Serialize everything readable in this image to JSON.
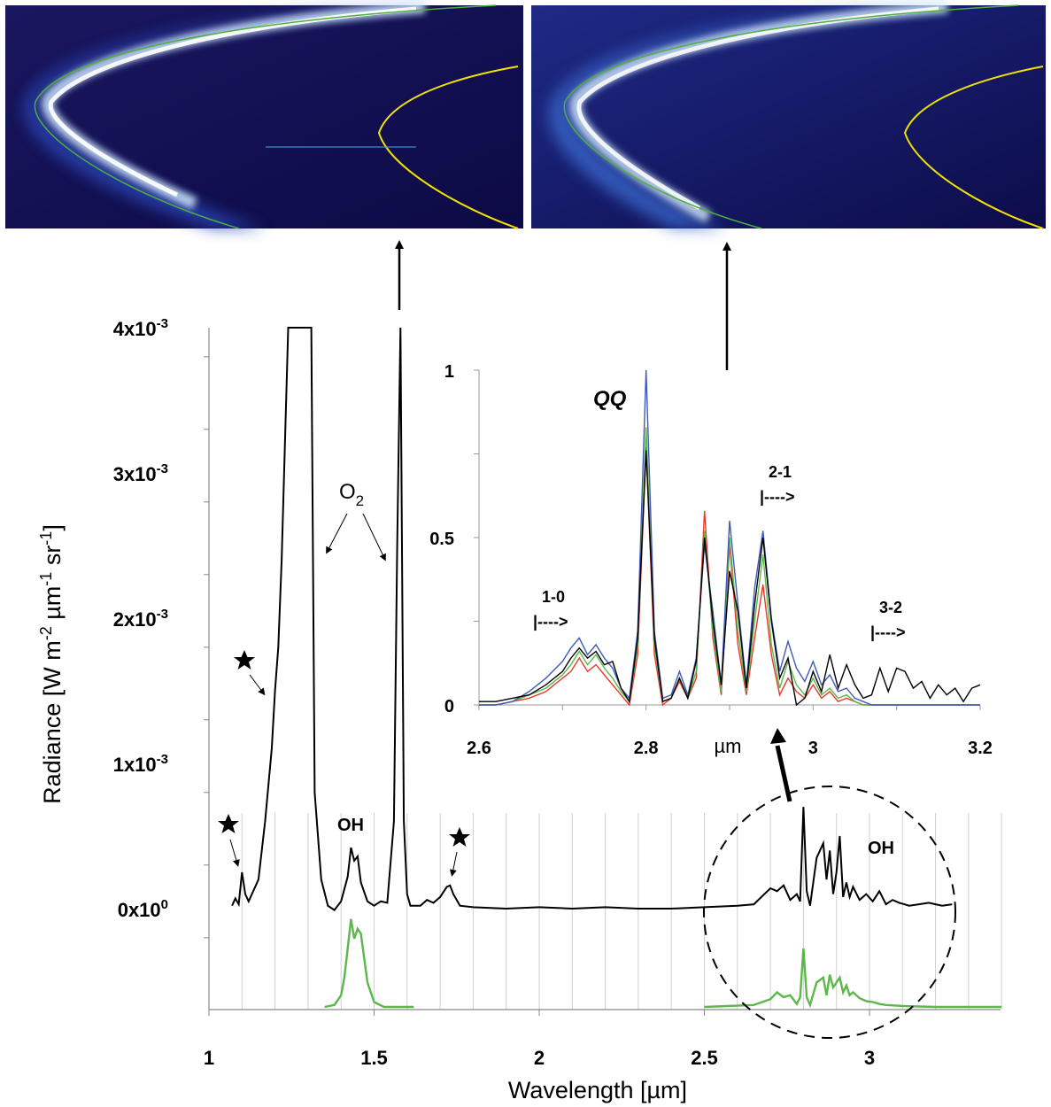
{
  "chart_data": [
    {
      "type": "line",
      "xlabel": "Wavelength [µm]",
      "ylabel_parts": [
        "Radiance [W m",
        "-2",
        " µm",
        "-1",
        " sr",
        "-1",
        "]"
      ],
      "xlim": [
        1.0,
        3.4
      ],
      "ylim": [
        0,
        0.004
      ],
      "x_ticks": [
        {
          "value": 1,
          "label": "1"
        },
        {
          "value": 1.5,
          "label": "1.5"
        },
        {
          "value": 2,
          "label": "2"
        },
        {
          "value": 2.5,
          "label": "2.5"
        },
        {
          "value": 3,
          "label": "3"
        }
      ],
      "y_ticks": [
        {
          "value": 0.004,
          "base": "4x10",
          "exp": "-3"
        },
        {
          "value": 0.003,
          "base": "3x10",
          "exp": "-3"
        },
        {
          "value": 0.002,
          "base": "2x10",
          "exp": "-3"
        },
        {
          "value": 0.001,
          "base": "1x10",
          "exp": "-3"
        },
        {
          "value": 0,
          "base": "0x10",
          "exp": "0"
        }
      ],
      "series": [
        {
          "color": "#000000",
          "x": [
            1.07,
            1.08,
            1.09,
            1.1,
            1.11,
            1.12,
            1.13,
            1.15,
            1.17,
            1.19,
            1.2,
            1.21,
            1.22,
            1.23,
            1.24,
            1.25,
            1.3,
            1.31,
            1.32,
            1.34,
            1.36,
            1.38,
            1.4,
            1.42,
            1.43,
            1.44,
            1.45,
            1.46,
            1.48,
            1.5,
            1.52,
            1.54,
            1.56,
            1.57,
            1.58,
            1.59,
            1.6,
            1.61,
            1.62,
            1.64,
            1.66,
            1.68,
            1.7,
            1.72,
            1.73,
            1.74,
            1.76,
            1.8,
            1.9,
            2.0,
            2.1,
            2.2,
            2.3,
            2.4,
            2.5,
            2.6,
            2.65,
            2.7,
            2.72,
            2.74,
            2.76,
            2.78,
            2.79,
            2.8,
            2.81,
            2.82,
            2.84,
            2.86,
            2.87,
            2.88,
            2.89,
            2.9,
            2.91,
            2.92,
            2.93,
            2.94,
            2.95,
            2.97,
            2.99,
            3.01,
            3.03,
            3.05,
            3.07,
            3.09,
            3.12,
            3.15,
            3.18,
            3.2,
            3.22,
            3.25
          ],
          "y": [
            2e-05,
            7e-05,
            3e-05,
            0.00025,
            0.0001,
            5e-05,
            0.0001,
            0.0002,
            0.0006,
            0.0011,
            0.0015,
            0.0018,
            0.0024,
            0.0032,
            0.004,
            0.004,
            0.004,
            0.004,
            0.0008,
            0.0002,
            2e-05,
            -1e-05,
            5e-05,
            0.00022,
            0.00042,
            0.00033,
            0.00036,
            0.00018,
            5e-05,
            2e-05,
            5e-05,
            4e-05,
            0.0006,
            0.0025,
            0.004,
            0.0006,
            0.0001,
            2e-05,
            2e-05,
            2e-05,
            6e-05,
            4e-05,
            8e-05,
            0.00015,
            0.00016,
            0.0001,
            2e-05,
            1e-05,
            0.0,
            1e-05,
            0.0,
            1e-05,
            0.0,
            0.0,
            1e-05,
            2e-05,
            3e-05,
            0.00014,
            0.00012,
            0.00016,
            6e-05,
            0.0001,
            5e-05,
            0.0007,
            0.00012,
            2e-05,
            0.00035,
            0.00045,
            0.0002,
            0.0004,
            0.0001,
            0.00025,
            0.0005,
            8e-05,
            0.00018,
            8e-05,
            0.00015,
            6e-05,
            0.0001,
            5e-05,
            0.00012,
            3e-05,
            6e-05,
            4e-05,
            2e-05,
            3e-05,
            4e-05,
            3e-05,
            2e-05,
            3e-05
          ]
        },
        {
          "color": "#5cb84a",
          "x": [
            1.35,
            1.38,
            1.4,
            1.41,
            1.42,
            1.43,
            1.44,
            1.45,
            1.46,
            1.47,
            1.48,
            1.5,
            1.53,
            1.62
          ],
          "y": [
            0,
            2e-05,
            0.00012,
            0.0003,
            0.0006,
            0.0009,
            0.0007,
            0.0008,
            0.00075,
            0.0005,
            0.00025,
            5e-05,
            0,
            0
          ]
        },
        {
          "color": "#5cb84a",
          "x": [
            2.5,
            2.65,
            2.7,
            2.72,
            2.74,
            2.76,
            2.78,
            2.79,
            2.8,
            2.81,
            2.82,
            2.84,
            2.86,
            2.87,
            2.88,
            2.89,
            2.9,
            2.91,
            2.92,
            2.93,
            2.94,
            2.95,
            2.97,
            2.99,
            3.01,
            3.03,
            3.05,
            3.1,
            3.2,
            3.4
          ],
          "y": [
            0,
            2e-05,
            8e-05,
            0.00015,
            0.0001,
            0.00012,
            3e-05,
            0.0001,
            0.0006,
            0.0001,
            2e-05,
            0.00025,
            0.0003,
            0.00012,
            0.00033,
            0.0002,
            0.00025,
            0.0003,
            0.00015,
            0.00022,
            0.00012,
            0.00015,
            9e-05,
            6e-05,
            5e-05,
            3e-05,
            2e-05,
            1e-05,
            0,
            0
          ]
        }
      ]
    },
    {
      "type": "line",
      "xlabel": "µm",
      "xlim": [
        2.6,
        3.2
      ],
      "ylim": [
        0,
        1
      ],
      "x_ticks": [
        {
          "value": 2.6,
          "label": "2.6"
        },
        {
          "value": 2.8,
          "label": "2.8"
        },
        {
          "value": 3.0,
          "label": "3"
        },
        {
          "value": 3.2,
          "label": "3.2"
        }
      ],
      "y_ticks": [
        {
          "value": 0,
          "label": "0"
        },
        {
          "value": 0.5,
          "label": "0.5"
        },
        {
          "value": 1,
          "label": "1"
        }
      ],
      "x": [
        2.6,
        2.62,
        2.64,
        2.66,
        2.68,
        2.7,
        2.71,
        2.72,
        2.73,
        2.74,
        2.75,
        2.76,
        2.77,
        2.78,
        2.79,
        2.8,
        2.81,
        2.82,
        2.83,
        2.84,
        2.85,
        2.86,
        2.87,
        2.88,
        2.89,
        2.9,
        2.91,
        2.92,
        2.93,
        2.94,
        2.95,
        2.96,
        2.97,
        2.98,
        2.99,
        3.0,
        3.01,
        3.02,
        3.03,
        3.04,
        3.05,
        3.06,
        3.07,
        3.08,
        3.09,
        3.1,
        3.11,
        3.12,
        3.13,
        3.14,
        3.15,
        3.16,
        3.17,
        3.18,
        3.19,
        3.2
      ],
      "series": [
        {
          "color": "#000000",
          "values": [
            0.01,
            0.01,
            0.02,
            0.03,
            0.06,
            0.1,
            0.14,
            0.17,
            0.14,
            0.16,
            0.12,
            0.13,
            0.05,
            0.01,
            0.2,
            0.76,
            0.2,
            0.01,
            0.02,
            0.08,
            0.02,
            0.13,
            0.5,
            0.25,
            0.06,
            0.4,
            0.28,
            0.05,
            0.3,
            0.5,
            0.25,
            0.08,
            0.14,
            0.0,
            0.02,
            0.1,
            0.04,
            0.15,
            0.05,
            0.12,
            0.06,
            0.02,
            0.03,
            0.11,
            0.04,
            0.11,
            0.1,
            0.05,
            0.07,
            0.02,
            0.06,
            0.03,
            0.05,
            0.01,
            0.05,
            0.06
          ]
        },
        {
          "color": "#e53a2a",
          "values": [
            0.0,
            0.0,
            0.01,
            0.02,
            0.04,
            0.08,
            0.1,
            0.14,
            0.1,
            0.12,
            0.09,
            0.06,
            0.03,
            0.0,
            0.15,
            0.77,
            0.15,
            0.0,
            0.02,
            0.07,
            0.02,
            0.08,
            0.58,
            0.2,
            0.03,
            0.48,
            0.18,
            0.03,
            0.2,
            0.36,
            0.15,
            0.03,
            0.08,
            0.04,
            0.02,
            0.06,
            0.02,
            0.04,
            0.01,
            0.02,
            0.01,
            0.0,
            0.0,
            0.0,
            0.0,
            0.0,
            0.0,
            0.0,
            0.0,
            0.0,
            0.0,
            0.0,
            0.0,
            0.0,
            0.0,
            0.0
          ]
        },
        {
          "color": "#5cb84a",
          "values": [
            0.0,
            0.0,
            0.01,
            0.03,
            0.05,
            0.09,
            0.12,
            0.16,
            0.12,
            0.15,
            0.11,
            0.08,
            0.04,
            0.01,
            0.18,
            0.83,
            0.18,
            0.01,
            0.02,
            0.08,
            0.02,
            0.1,
            0.52,
            0.22,
            0.04,
            0.5,
            0.22,
            0.04,
            0.25,
            0.45,
            0.18,
            0.05,
            0.13,
            0.06,
            0.03,
            0.08,
            0.03,
            0.05,
            0.02,
            0.03,
            0.01,
            0.0,
            0.0,
            0.0,
            0.0,
            0.0,
            0.0,
            0.0,
            0.0,
            0.0,
            0.0,
            0.0,
            0.0,
            0.0,
            0.0,
            0.0
          ]
        },
        {
          "color": "#3f5ab8",
          "values": [
            0.0,
            0.0,
            0.01,
            0.04,
            0.08,
            0.13,
            0.17,
            0.2,
            0.15,
            0.18,
            0.14,
            0.11,
            0.05,
            0.02,
            0.22,
            1.0,
            0.22,
            0.02,
            0.03,
            0.1,
            0.03,
            0.14,
            0.48,
            0.28,
            0.06,
            0.55,
            0.3,
            0.06,
            0.35,
            0.52,
            0.26,
            0.1,
            0.19,
            0.11,
            0.07,
            0.13,
            0.06,
            0.09,
            0.04,
            0.05,
            0.02,
            0.01,
            0.0,
            0.0,
            0.0,
            0.0,
            0.0,
            0.0,
            0.0,
            0.0,
            0.0,
            0.0,
            0.0,
            0.0,
            0.0,
            0.0
          ]
        }
      ]
    }
  ],
  "labels": {
    "qq": "QQ",
    "o2": "O",
    "o2_sub": "2",
    "oh_main_left": "OH",
    "oh_main_right": "OH",
    "band_10": "1-0",
    "band_21": "2-1",
    "band_32": "3-2",
    "arrow_text": "|---->"
  }
}
